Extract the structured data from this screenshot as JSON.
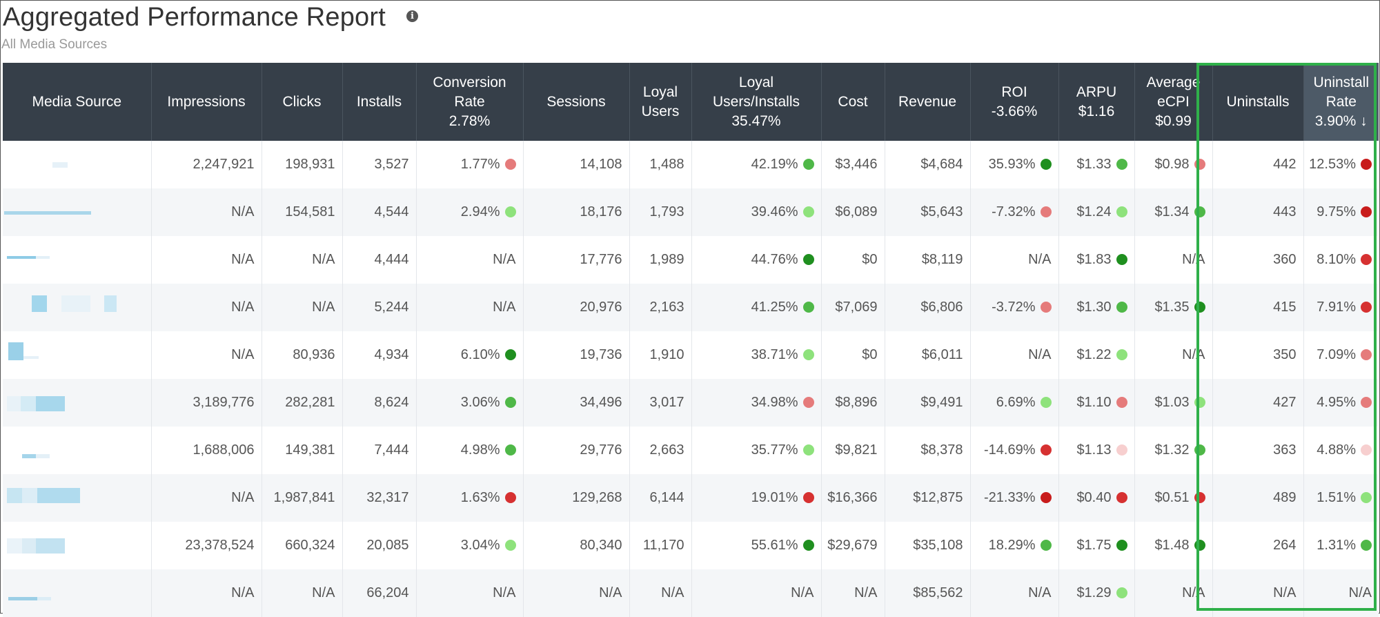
{
  "page": {
    "title": "Aggregated Performance Report",
    "subtitle": "All Media Sources",
    "info_icon": "info-icon"
  },
  "colors": {
    "header_bg": "#363f49",
    "dark_green": "#1f8f1f",
    "green": "#4fb848",
    "light_green": "#8ee27c",
    "light_red": "#e57b7b",
    "pale_red": "#f7cfcf",
    "red": "#d63131",
    "dark_red": "#c81c1c",
    "highlight": "#2fb04a"
  },
  "table": {
    "headers": [
      {
        "lines": [
          "Media Source"
        ]
      },
      {
        "lines": [
          "Impressions"
        ]
      },
      {
        "lines": [
          "Clicks"
        ]
      },
      {
        "lines": [
          "Installs"
        ]
      },
      {
        "lines": [
          "Conversion",
          "Rate",
          "2.78%"
        ]
      },
      {
        "lines": [
          "Sessions"
        ]
      },
      {
        "lines": [
          "Loyal",
          "Users"
        ]
      },
      {
        "lines": [
          "Loyal",
          "Users/Installs",
          "35.47%"
        ]
      },
      {
        "lines": [
          "Cost"
        ]
      },
      {
        "lines": [
          "Revenue"
        ]
      },
      {
        "lines": [
          "ROI",
          "-3.66%"
        ]
      },
      {
        "lines": [
          "ARPU",
          "$1.16"
        ]
      },
      {
        "lines": [
          "Average",
          "eCPI",
          "$0.99"
        ]
      },
      {
        "lines": [
          "Uninstalls"
        ]
      },
      {
        "lines": [
          "Uninstall",
          "Rate",
          "3.90% ↓"
        ],
        "sorted": true
      }
    ],
    "rows": [
      {
        "cells": [
          {
            "v": ""
          },
          {
            "v": "2,247,921"
          },
          {
            "v": "198,931"
          },
          {
            "v": "3,527"
          },
          {
            "v": "1.77%",
            "dot": "light_red"
          },
          {
            "v": "14,108"
          },
          {
            "v": "1,488"
          },
          {
            "v": "42.19%",
            "dot": "green"
          },
          {
            "v": "$3,446"
          },
          {
            "v": "$4,684"
          },
          {
            "v": "35.93%",
            "dot": "dark_green"
          },
          {
            "v": "$1.33",
            "dot": "green"
          },
          {
            "v": "$0.98",
            "dot": "light_red"
          },
          {
            "v": "442"
          },
          {
            "v": "12.53%",
            "dot": "dark_red"
          }
        ]
      },
      {
        "cells": [
          {
            "v": ""
          },
          {
            "v": "N/A"
          },
          {
            "v": "154,581"
          },
          {
            "v": "4,544"
          },
          {
            "v": "2.94%",
            "dot": "light_green"
          },
          {
            "v": "18,176"
          },
          {
            "v": "1,793"
          },
          {
            "v": "39.46%",
            "dot": "light_green"
          },
          {
            "v": "$6,089"
          },
          {
            "v": "$5,643"
          },
          {
            "v": "-7.32%",
            "dot": "light_red"
          },
          {
            "v": "$1.24",
            "dot": "light_green"
          },
          {
            "v": "$1.34",
            "dot": "green"
          },
          {
            "v": "443"
          },
          {
            "v": "9.75%",
            "dot": "dark_red"
          }
        ]
      },
      {
        "cells": [
          {
            "v": ""
          },
          {
            "v": "N/A"
          },
          {
            "v": "N/A"
          },
          {
            "v": "4,444"
          },
          {
            "v": "N/A"
          },
          {
            "v": "17,776"
          },
          {
            "v": "1,989"
          },
          {
            "v": "44.76%",
            "dot": "dark_green"
          },
          {
            "v": "$0"
          },
          {
            "v": "$8,119"
          },
          {
            "v": "N/A"
          },
          {
            "v": "$1.83",
            "dot": "dark_green"
          },
          {
            "v": "N/A"
          },
          {
            "v": "360"
          },
          {
            "v": "8.10%",
            "dot": "red"
          }
        ]
      },
      {
        "cells": [
          {
            "v": ""
          },
          {
            "v": "N/A"
          },
          {
            "v": "N/A"
          },
          {
            "v": "5,244"
          },
          {
            "v": "N/A"
          },
          {
            "v": "20,976"
          },
          {
            "v": "2,163"
          },
          {
            "v": "41.25%",
            "dot": "green"
          },
          {
            "v": "$7,069"
          },
          {
            "v": "$6,806"
          },
          {
            "v": "-3.72%",
            "dot": "light_red"
          },
          {
            "v": "$1.30",
            "dot": "green"
          },
          {
            "v": "$1.35",
            "dot": "dark_green"
          },
          {
            "v": "415"
          },
          {
            "v": "7.91%",
            "dot": "red"
          }
        ]
      },
      {
        "cells": [
          {
            "v": ""
          },
          {
            "v": "N/A"
          },
          {
            "v": "80,936"
          },
          {
            "v": "4,934"
          },
          {
            "v": "6.10%",
            "dot": "dark_green"
          },
          {
            "v": "19,736"
          },
          {
            "v": "1,910"
          },
          {
            "v": "38.71%",
            "dot": "light_green"
          },
          {
            "v": "$0"
          },
          {
            "v": "$6,011"
          },
          {
            "v": "N/A"
          },
          {
            "v": "$1.22",
            "dot": "light_green"
          },
          {
            "v": "N/A"
          },
          {
            "v": "350"
          },
          {
            "v": "7.09%",
            "dot": "light_red"
          }
        ]
      },
      {
        "cells": [
          {
            "v": ""
          },
          {
            "v": "3,189,776"
          },
          {
            "v": "282,281"
          },
          {
            "v": "8,624"
          },
          {
            "v": "3.06%",
            "dot": "green"
          },
          {
            "v": "34,496"
          },
          {
            "v": "3,017"
          },
          {
            "v": "34.98%",
            "dot": "light_red"
          },
          {
            "v": "$8,896"
          },
          {
            "v": "$9,491"
          },
          {
            "v": "6.69%",
            "dot": "light_green"
          },
          {
            "v": "$1.10",
            "dot": "light_red"
          },
          {
            "v": "$1.03",
            "dot": "light_green"
          },
          {
            "v": "427"
          },
          {
            "v": "4.95%",
            "dot": "light_red"
          }
        ]
      },
      {
        "cells": [
          {
            "v": ""
          },
          {
            "v": "1,688,006"
          },
          {
            "v": "149,381"
          },
          {
            "v": "7,444"
          },
          {
            "v": "4.98%",
            "dot": "green"
          },
          {
            "v": "29,776"
          },
          {
            "v": "2,663"
          },
          {
            "v": "35.77%",
            "dot": "light_green"
          },
          {
            "v": "$9,821"
          },
          {
            "v": "$8,378"
          },
          {
            "v": "-14.69%",
            "dot": "red"
          },
          {
            "v": "$1.13",
            "dot": "pale_red"
          },
          {
            "v": "$1.32",
            "dot": "green"
          },
          {
            "v": "363"
          },
          {
            "v": "4.88%",
            "dot": "pale_red"
          }
        ]
      },
      {
        "cells": [
          {
            "v": ""
          },
          {
            "v": "N/A"
          },
          {
            "v": "1,987,841"
          },
          {
            "v": "32,317"
          },
          {
            "v": "1.63%",
            "dot": "red"
          },
          {
            "v": "129,268"
          },
          {
            "v": "6,144"
          },
          {
            "v": "19.01%",
            "dot": "red"
          },
          {
            "v": "$16,366"
          },
          {
            "v": "$12,875"
          },
          {
            "v": "-21.33%",
            "dot": "dark_red"
          },
          {
            "v": "$0.40",
            "dot": "red"
          },
          {
            "v": "$0.51",
            "dot": "red"
          },
          {
            "v": "489"
          },
          {
            "v": "1.51%",
            "dot": "light_green"
          }
        ]
      },
      {
        "cells": [
          {
            "v": ""
          },
          {
            "v": "23,378,524"
          },
          {
            "v": "660,324"
          },
          {
            "v": "20,085"
          },
          {
            "v": "3.04%",
            "dot": "light_green"
          },
          {
            "v": "80,340"
          },
          {
            "v": "11,170"
          },
          {
            "v": "55.61%",
            "dot": "dark_green"
          },
          {
            "v": "$29,679"
          },
          {
            "v": "$35,108"
          },
          {
            "v": "18.29%",
            "dot": "green"
          },
          {
            "v": "$1.75",
            "dot": "dark_green"
          },
          {
            "v": "$1.48",
            "dot": "dark_green"
          },
          {
            "v": "264"
          },
          {
            "v": "1.31%",
            "dot": "green"
          }
        ]
      },
      {
        "cells": [
          {
            "v": ""
          },
          {
            "v": "N/A"
          },
          {
            "v": "N/A"
          },
          {
            "v": "66,204"
          },
          {
            "v": "N/A"
          },
          {
            "v": "N/A"
          },
          {
            "v": "N/A"
          },
          {
            "v": "N/A"
          },
          {
            "v": "N/A"
          },
          {
            "v": "$85,562"
          },
          {
            "v": "N/A"
          },
          {
            "v": "$1.29",
            "dot": "light_green"
          },
          {
            "v": "N/A"
          },
          {
            "v": "N/A"
          },
          {
            "v": "N/A"
          }
        ]
      }
    ]
  }
}
